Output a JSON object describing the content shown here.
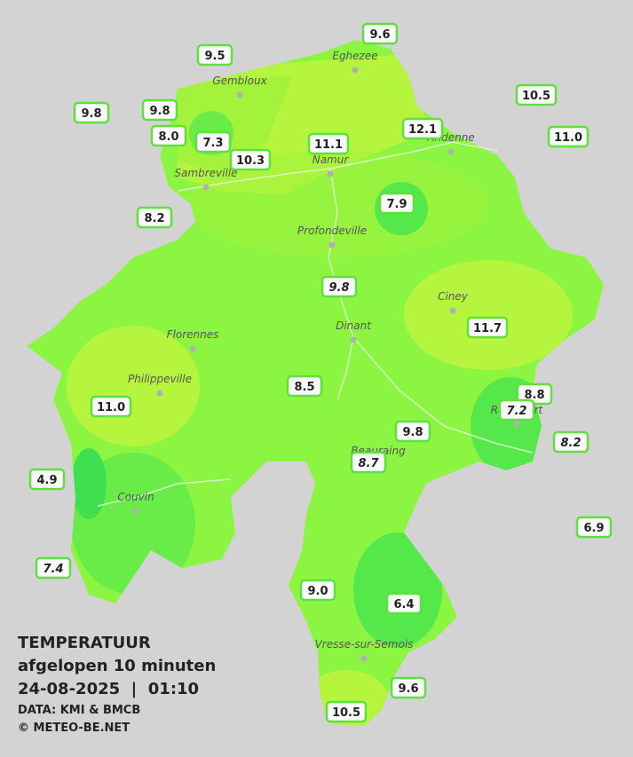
{
  "legend": {
    "title": "TEMPERATUUR",
    "subtitle": "afgelopen 10 minuten",
    "datetime": "24-08-2025  |  01:10",
    "source": "DATA: KMI & BMCB",
    "copyright": "© METEO-BE.NET"
  },
  "cities": [
    "Eghezee",
    "Gembloux",
    "Andenne",
    "Namur",
    "Sambreville",
    "Profondeville",
    "Ciney",
    "Dinant",
    "Florennes",
    "Philippeville",
    "Rochefort",
    "Beauraing",
    "Couvin",
    "Vresse-sur-Semois"
  ],
  "stations": [
    "9.6",
    "9.5",
    "10.5",
    "9.8",
    "9.8",
    "8.0",
    "7.3",
    "10.3",
    "11.1",
    "12.1",
    "11.0",
    "8.2",
    "7.9",
    "9.8",
    "11.7",
    "8.5",
    "8.8",
    "7.2",
    "11.0",
    "9.8",
    "8.2",
    "8.7",
    "4.9",
    "6.9",
    "7.4",
    "9.0",
    "6.4",
    "9.6",
    "10.5"
  ]
}
